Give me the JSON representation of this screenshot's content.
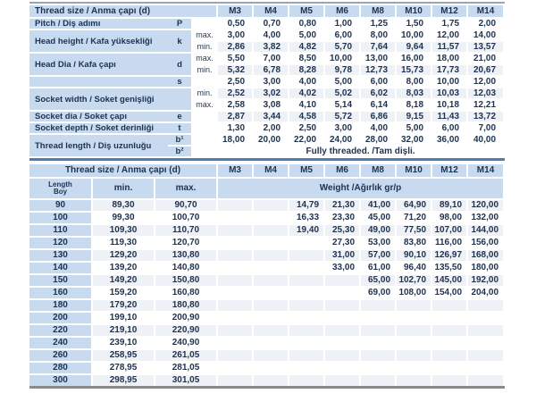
{
  "colors": {
    "cell_blue": "#c8daf0",
    "row_stripe": "#eef1f5",
    "text": "#1d3250",
    "divider_blue": "#4f7dad",
    "bottom_bar_gray": "#8a8a8a"
  },
  "top_table": {
    "title": "Thread size / Anma çapı (d)",
    "sizes": [
      "M3",
      "M4",
      "M5",
      "M6",
      "M8",
      "M10",
      "M12",
      "M14"
    ],
    "groups": [
      {
        "label": "Pitch / Diş adımı",
        "symbol": "P",
        "rows": [
          {
            "sub": "",
            "stripe": false,
            "values": [
              "0,50",
              "0,70",
              "0,80",
              "1,00",
              "1,25",
              "1,50",
              "1,75",
              "2,00"
            ]
          }
        ]
      },
      {
        "label": "Head height / Kafa yüksekliği",
        "symbol": "k",
        "rows": [
          {
            "sub": "max.",
            "stripe": false,
            "values": [
              "3,00",
              "4,00",
              "5,00",
              "6,00",
              "8,00",
              "10,00",
              "12,00",
              "14,00"
            ]
          },
          {
            "sub": "min.",
            "stripe": true,
            "values": [
              "2,86",
              "3,82",
              "4,82",
              "5,70",
              "7,64",
              "9,64",
              "11,57",
              "13,57"
            ]
          }
        ]
      },
      {
        "label": "Head Dia / Kafa çapı",
        "symbol": "d",
        "rows": [
          {
            "sub": "max.",
            "stripe": false,
            "values": [
              "5,50",
              "7,00",
              "8,50",
              "10,00",
              "13,00",
              "16,00",
              "18,00",
              "21,00"
            ]
          },
          {
            "sub": "min.",
            "stripe": true,
            "values": [
              "5,32",
              "6,78",
              "8,28",
              "9,78",
              "12,73",
              "15,73",
              "17,73",
              "20,67"
            ]
          }
        ]
      },
      {
        "label": "",
        "symbol": "s",
        "rows": [
          {
            "sub": "",
            "stripe": false,
            "values": [
              "2,50",
              "3,00",
              "4,00",
              "5,00",
              "6,00",
              "8,00",
              "10,00",
              "12,00"
            ]
          }
        ]
      },
      {
        "label": "Socket width / Soket genişliği",
        "symbol": "",
        "rows": [
          {
            "sub": "min.",
            "stripe": true,
            "values": [
              "2,52",
              "3,02",
              "4,02",
              "5,02",
              "6,02",
              "8,03",
              "10,03",
              "12,03"
            ]
          },
          {
            "sub": "max.",
            "stripe": false,
            "values": [
              "2,58",
              "3,08",
              "4,10",
              "5,14",
              "6,14",
              "8,18",
              "10,18",
              "12,21"
            ]
          }
        ]
      },
      {
        "label": "Socket dia / Soket çapı",
        "symbol": "e",
        "rows": [
          {
            "sub": "",
            "stripe": true,
            "values": [
              "2,87",
              "3,44",
              "4,58",
              "5,72",
              "6,86",
              "9,15",
              "11,43",
              "13,72"
            ]
          }
        ]
      },
      {
        "label": "Socket depth / Soket derinliği",
        "symbol": "t",
        "rows": [
          {
            "sub": "",
            "stripe": false,
            "values": [
              "1,30",
              "2,00",
              "2,50",
              "3,00",
              "4,00",
              "5,00",
              "6,00",
              "7,00"
            ]
          }
        ]
      },
      {
        "label": "Thread length / Diş uzunluğu",
        "symbol": null,
        "rows": [
          {
            "symbol": "b¹",
            "sub": "",
            "stripe": false,
            "values": [
              "18,00",
              "20,00",
              "22,00",
              "24,00",
              "28,00",
              "32,00",
              "36,00",
              "40,00"
            ]
          },
          {
            "symbol": "b²",
            "sub": "",
            "stripe": false,
            "span_text": "Fully threaded. /Tam dişli."
          }
        ]
      }
    ]
  },
  "bottom_table": {
    "title": "Thread size / Anma çapı (d)",
    "sizes": [
      "M3",
      "M4",
      "M5",
      "M6",
      "M8",
      "M10",
      "M12",
      "M14"
    ],
    "length_label_en": "Length",
    "length_label_tr": "Boy",
    "min_label": "min.",
    "max_label": "max.",
    "weight_label": "Weight /Ağırlık gr/p",
    "rows": [
      {
        "length": "90",
        "min": "89,30",
        "max": "90,70",
        "weights": [
          "",
          "",
          "14,79",
          "21,30",
          "41,00",
          "64,90",
          "89,10",
          "120,00"
        ]
      },
      {
        "length": "100",
        "min": "99,30",
        "max": "100,70",
        "weights": [
          "",
          "",
          "16,33",
          "23,30",
          "45,00",
          "71,20",
          "98,00",
          "132,00"
        ]
      },
      {
        "length": "110",
        "min": "109,30",
        "max": "110,70",
        "weights": [
          "",
          "",
          "19,40",
          "25,30",
          "49,00",
          "77,50",
          "107,00",
          "144,00"
        ]
      },
      {
        "length": "120",
        "min": "119,30",
        "max": "120,70",
        "weights": [
          "",
          "",
          "",
          "27,30",
          "53,00",
          "83,80",
          "116,00",
          "156,00"
        ]
      },
      {
        "length": "130",
        "min": "129,20",
        "max": "130,80",
        "weights": [
          "",
          "",
          "",
          "31,00",
          "57,00",
          "90,10",
          "126,97",
          "168,00"
        ]
      },
      {
        "length": "140",
        "min": "139,20",
        "max": "140,80",
        "weights": [
          "",
          "",
          "",
          "33,00",
          "61,00",
          "96,40",
          "135,50",
          "180,00"
        ]
      },
      {
        "length": "150",
        "min": "149,20",
        "max": "150,80",
        "weights": [
          "",
          "",
          "",
          "",
          "65,00",
          "102,70",
          "145,00",
          "192,00"
        ]
      },
      {
        "length": "160",
        "min": "159,20",
        "max": "160,80",
        "weights": [
          "",
          "",
          "",
          "",
          "69,00",
          "108,00",
          "154,00",
          "204,00"
        ]
      },
      {
        "length": "180",
        "min": "179,20",
        "max": "180,80",
        "weights": [
          "",
          "",
          "",
          "",
          "",
          "",
          "",
          ""
        ]
      },
      {
        "length": "200",
        "min": "199,10",
        "max": "200,90",
        "weights": [
          "",
          "",
          "",
          "",
          "",
          "",
          "",
          ""
        ]
      },
      {
        "length": "220",
        "min": "219,10",
        "max": "220,90",
        "weights": [
          "",
          "",
          "",
          "",
          "",
          "",
          "",
          ""
        ]
      },
      {
        "length": "240",
        "min": "239,10",
        "max": "240,90",
        "weights": [
          "",
          "",
          "",
          "",
          "",
          "",
          "",
          ""
        ]
      },
      {
        "length": "260",
        "min": "258,95",
        "max": "261,05",
        "weights": [
          "",
          "",
          "",
          "",
          "",
          "",
          "",
          ""
        ]
      },
      {
        "length": "280",
        "min": "278,95",
        "max": "281,05",
        "weights": [
          "",
          "",
          "",
          "",
          "",
          "",
          "",
          ""
        ]
      },
      {
        "length": "300",
        "min": "298,95",
        "max": "301,05",
        "weights": [
          "",
          "",
          "",
          "",
          "",
          "",
          "",
          ""
        ]
      }
    ]
  }
}
